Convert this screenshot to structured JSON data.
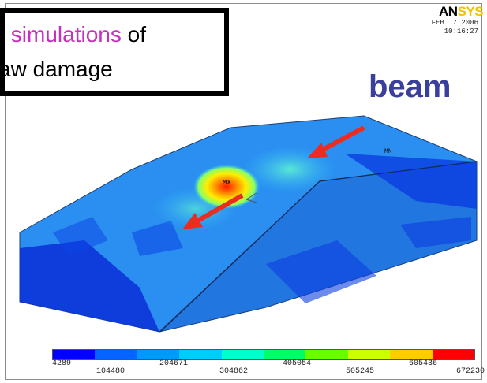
{
  "header": {
    "logo_part1": "AN",
    "logo_part2": "SYS",
    "date_line1": "FEB  7 2006",
    "date_line2": "10:16:27"
  },
  "callout": {
    "line1_highlight": "simulations",
    "line1_rest": "of",
    "line2": "aw damage"
  },
  "label": {
    "beam": "beam"
  },
  "plot": {
    "max_marker": "MX",
    "min_marker": "MN",
    "legend_values": [
      "4289",
      "104480",
      "204671",
      "304862",
      "405054",
      "505245",
      "605436",
      "672230"
    ],
    "legend_colors": [
      "#0000ff",
      "#0066ff",
      "#0099ff",
      "#00ccff",
      "#00ffcc",
      "#00ff66",
      "#66ff00",
      "#ccff00",
      "#ffcc00",
      "#ff0000"
    ]
  }
}
